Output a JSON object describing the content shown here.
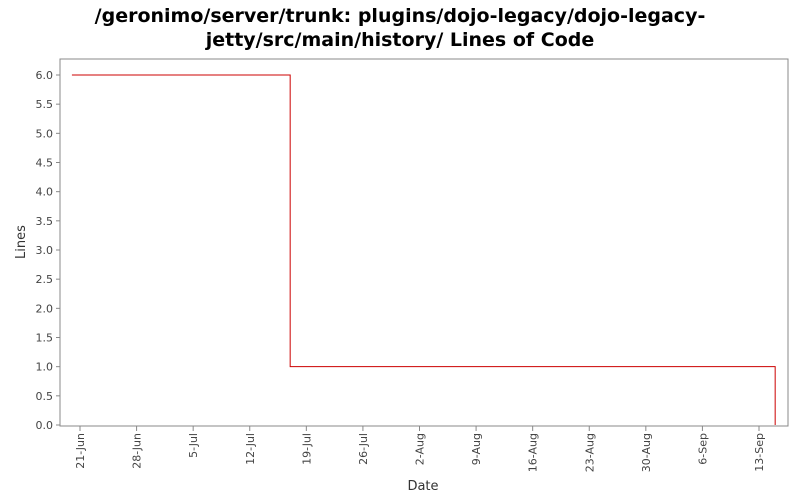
{
  "title_line1": "/geronimo/server/trunk: plugins/dojo-legacy/dojo-legacy-",
  "title_line2": "jetty/src/main/history/ Lines of Code",
  "chart_data": {
    "type": "line",
    "step": true,
    "xlabel": "Date",
    "ylabel": "Lines",
    "ylim": [
      0,
      6.0
    ],
    "yticks": [
      "0.0",
      "0.5",
      "1.0",
      "1.5",
      "2.0",
      "2.5",
      "3.0",
      "3.5",
      "4.0",
      "4.5",
      "5.0",
      "5.5",
      "6.0"
    ],
    "xticks": [
      "21-Jun",
      "28-Jun",
      "5-Jul",
      "12-Jul",
      "19-Jul",
      "26-Jul",
      "2-Aug",
      "9-Aug",
      "16-Aug",
      "23-Aug",
      "30-Aug",
      "6-Sep",
      "13-Sep"
    ],
    "series": [
      {
        "color": "#cc0000",
        "points": [
          {
            "date": "20-Jun",
            "value": 6
          },
          {
            "date": "17-Jul",
            "value": 1
          },
          {
            "date": "15-Sep",
            "value": 0
          }
        ]
      }
    ],
    "grid": false
  }
}
